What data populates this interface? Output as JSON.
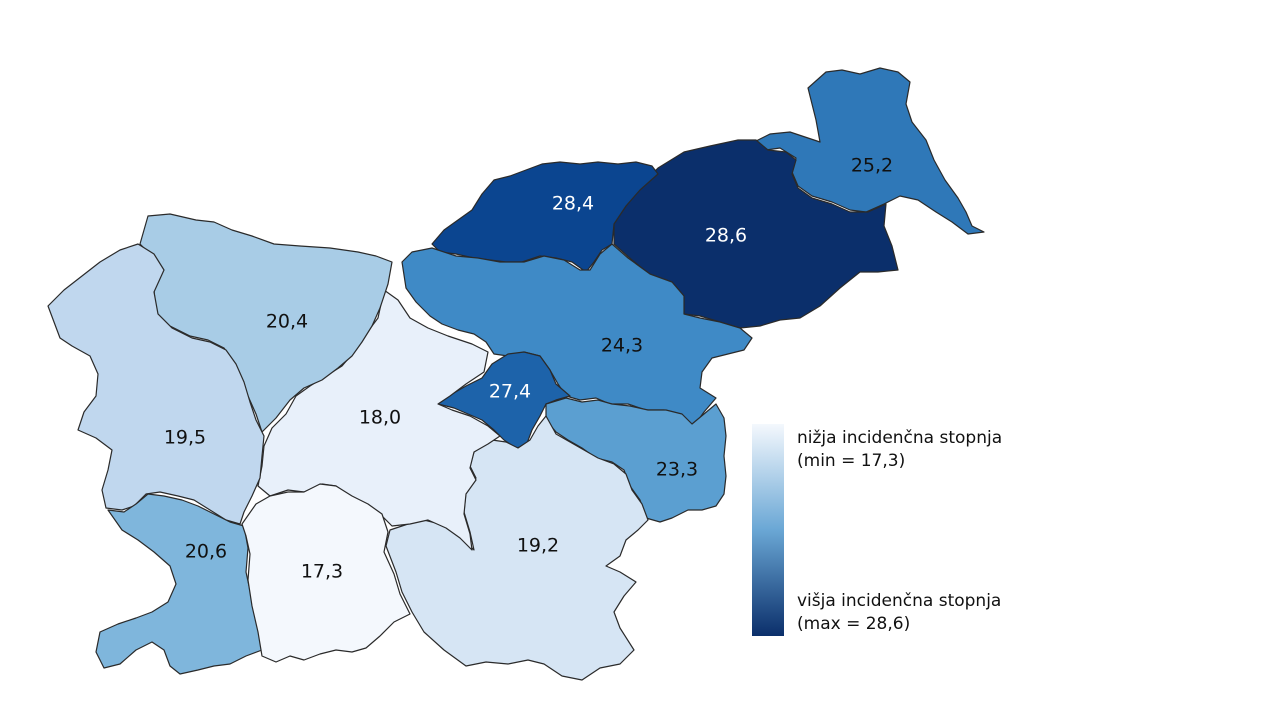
{
  "map_data": {
    "regions": [
      {
        "id": "pomurska",
        "value": "25,2",
        "fill": "#2f78b8",
        "label_color": "#111111"
      },
      {
        "id": "podravska",
        "value": "28,6",
        "fill": "#0b2f6b",
        "label_color": "#ffffff"
      },
      {
        "id": "koroska",
        "value": "28,4",
        "fill": "#0b4590",
        "label_color": "#ffffff"
      },
      {
        "id": "savinjska",
        "value": "24,3",
        "fill": "#3f8ac6",
        "label_color": "#111111"
      },
      {
        "id": "zasavska",
        "value": "27,4",
        "fill": "#1d63aa",
        "label_color": "#ffffff"
      },
      {
        "id": "posavska",
        "value": "23,3",
        "fill": "#5b9fd1",
        "label_color": "#111111"
      },
      {
        "id": "jugovzhodna",
        "value": "19,2",
        "fill": "#d6e5f4",
        "label_color": "#111111"
      },
      {
        "id": "osrednjeslovenska",
        "value": "18,0",
        "fill": "#e8f0fa",
        "label_color": "#111111"
      },
      {
        "id": "gorenjska",
        "value": "20,4",
        "fill": "#a8cce6",
        "label_color": "#111111"
      },
      {
        "id": "goriska",
        "value": "19,5",
        "fill": "#c0d7ee",
        "label_color": "#111111"
      },
      {
        "id": "obalno-kraska",
        "value": "20,6",
        "fill": "#7fb6dc",
        "label_color": "#111111"
      },
      {
        "id": "primorsko-notranjska",
        "value": "17,3",
        "fill": "#f4f8fd",
        "label_color": "#111111"
      }
    ],
    "legend": {
      "low_label": "nižja incidenčna stopnja",
      "low_note": "(min = 17,3)",
      "high_label": "višja incidenčna stopnja",
      "high_note": "(max = 28,6)",
      "min_value": 17.3,
      "max_value": 28.6,
      "gradient_start": "#f4f8fd",
      "gradient_end": "#0b2f6b"
    }
  }
}
